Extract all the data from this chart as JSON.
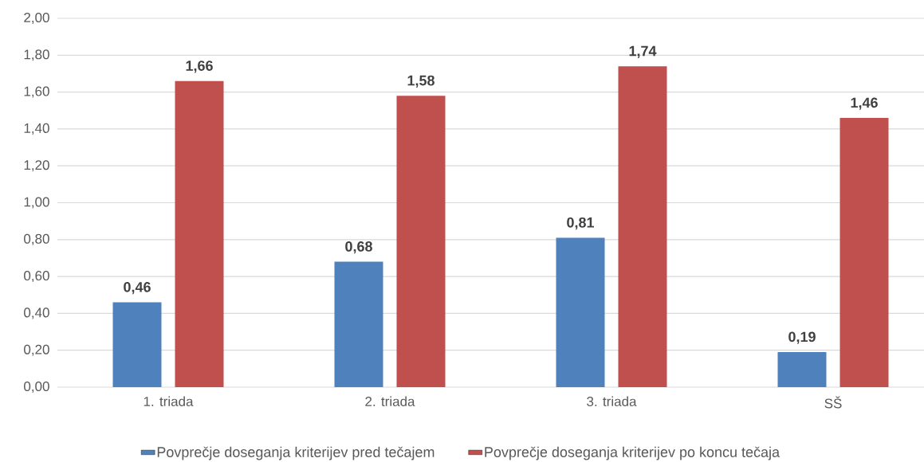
{
  "chart_data": {
    "type": "bar",
    "categories": [
      "1. triada",
      "2. triada",
      "3. triada",
      "SŠ"
    ],
    "series": [
      {
        "name": "Povprečje doseganja kriterijev pred tečajem",
        "color": "#4f81bd",
        "values": [
          0.46,
          0.68,
          0.81,
          0.19
        ],
        "value_labels": [
          "0,46",
          "0,68",
          "0,81",
          "0,19"
        ]
      },
      {
        "name": "Povprečje doseganja kriterijev po koncu tečaja",
        "color": "#c0504d",
        "values": [
          1.66,
          1.58,
          1.74,
          1.46
        ],
        "value_labels": [
          "1,66",
          "1,58",
          "1,74",
          "1,46"
        ]
      }
    ],
    "ylim": [
      0,
      2
    ],
    "yticks": [
      {
        "value": 0,
        "label": "0,00"
      },
      {
        "value": 0.2,
        "label": "0,20"
      },
      {
        "value": 0.4,
        "label": "0,40"
      },
      {
        "value": 0.6,
        "label": "0,60"
      },
      {
        "value": 0.8,
        "label": "0,80"
      },
      {
        "value": 1,
        "label": "1,00"
      },
      {
        "value": 1.2,
        "label": "1,20"
      },
      {
        "value": 1.4,
        "label": "1,40"
      },
      {
        "value": 1.6,
        "label": "1,60"
      },
      {
        "value": 1.8,
        "label": "1,80"
      },
      {
        "value": 2,
        "label": "2,00"
      }
    ],
    "grid": "y",
    "legend": "bottom"
  }
}
